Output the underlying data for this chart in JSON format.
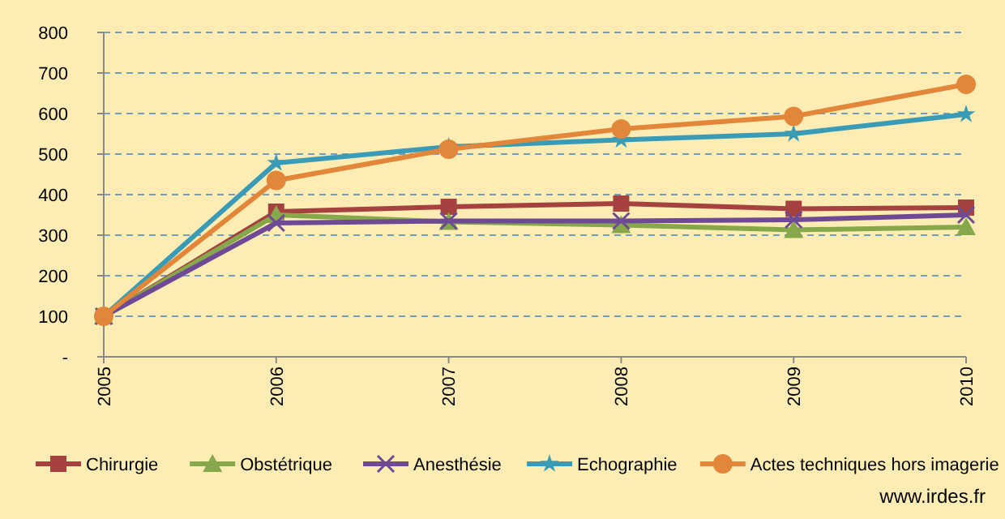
{
  "chart_data": {
    "type": "line",
    "categories": [
      "2005",
      "2006",
      "2007",
      "2008",
      "2009",
      "2010"
    ],
    "series": [
      {
        "name": "Chirurgie",
        "color": "#a5423f",
        "marker": "square",
        "values": [
          100,
          358,
          370,
          378,
          365,
          368
        ]
      },
      {
        "name": "Obstétrique",
        "color": "#86a84a",
        "marker": "triangle",
        "values": [
          100,
          350,
          333,
          325,
          313,
          320
        ]
      },
      {
        "name": "Anesthésie",
        "color": "#6e4a95",
        "marker": "cross",
        "values": [
          100,
          330,
          335,
          335,
          338,
          350
        ]
      },
      {
        "name": "Echographie",
        "color": "#3a9bb6",
        "marker": "star",
        "values": [
          100,
          478,
          518,
          535,
          550,
          598
        ]
      },
      {
        "name": "Actes techniques hors imagerie",
        "color": "#e2863a",
        "marker": "circle",
        "values": [
          100,
          435,
          512,
          562,
          593,
          672
        ]
      }
    ],
    "ylim": [
      0,
      800
    ],
    "yticks": [
      {
        "value": 0,
        "label": "-"
      },
      100,
      200,
      300,
      400,
      500,
      600,
      700,
      800
    ],
    "grid": "y",
    "legend": "bottom",
    "line_style": "solid",
    "annotations": [
      "www.irdes.fr"
    ]
  }
}
